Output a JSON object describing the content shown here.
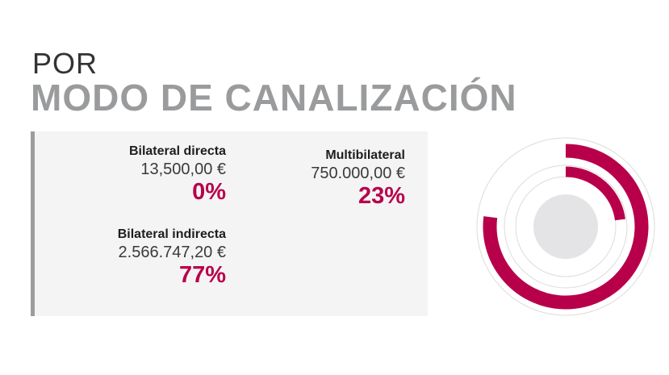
{
  "header": {
    "line1": "POR",
    "line2": "MODO DE CANALIZACIÓN"
  },
  "entries": [
    {
      "label": "Bilateral directa",
      "amount": "13,500,00 €",
      "percent": "0%"
    },
    {
      "label": "Multibilateral",
      "amount": "750.000,00 €",
      "percent": "23%"
    },
    {
      "label": "Bilateral indirecta",
      "amount": "2.566.747,20 €",
      "percent": "77%"
    }
  ],
  "colors": {
    "accent": "#b8004a",
    "title_gray": "#9a9b9d",
    "panel_bg": "#f4f4f5",
    "panel_bar": "#9b9c9e",
    "ring_track": "#dcdcdc",
    "center": "#e4e4e6"
  },
  "chart_data": {
    "type": "pie",
    "variant": "concentric-rings",
    "categories": [
      "Bilateral indirecta",
      "Multibilateral",
      "Bilateral directa"
    ],
    "values": [
      77,
      23,
      0
    ],
    "unit": "%"
  }
}
